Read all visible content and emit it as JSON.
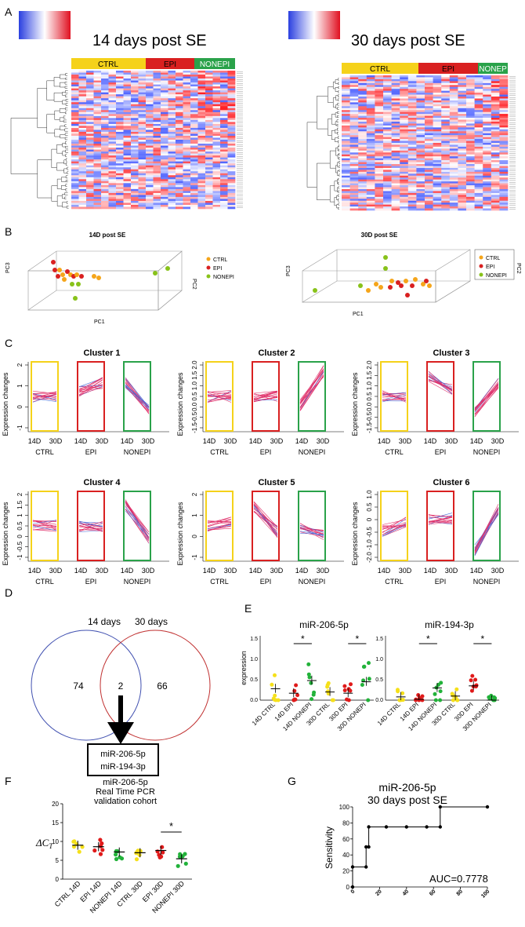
{
  "panel_letters": {
    "a": "A",
    "b": "B",
    "c": "C",
    "d": "D",
    "e": "E",
    "f": "F",
    "g": "G"
  },
  "colors": {
    "ctrl": "#f5d21a",
    "epi": "#d92020",
    "nonepi": "#2aa24a",
    "hm_low": "#2a3fe0",
    "hm_high": "#e01020",
    "lineblue": "#4a6ad8",
    "linered": "#e0306a"
  },
  "panel_a": {
    "left": {
      "title": "14 days post SE",
      "groups": [
        "CTRL",
        "EPI",
        "NONEPI"
      ]
    },
    "right": {
      "title": "30 days post SE",
      "groups": [
        "CTRL",
        "EPI",
        "NONEP"
      ]
    }
  },
  "panel_b": {
    "left": {
      "title": "14D post SE",
      "legend": [
        "CTRL",
        "EPI",
        "NONEPI"
      ],
      "axes": {
        "x": "PC1",
        "y": "PC3",
        "z": "PC2"
      }
    },
    "right": {
      "title": "30D post SE",
      "legend": [
        "CTRL",
        "EPI",
        "NONEPI"
      ],
      "axes": {
        "x": "PC1",
        "y": "PC3",
        "z": "PC2"
      }
    }
  },
  "panel_c": {
    "ylabel": "Expression changes",
    "tick_labels": [
      "14D",
      "30D"
    ],
    "groups": [
      "CTRL",
      "EPI",
      "NONEPI"
    ],
    "clusters": [
      {
        "title": "Cluster 1",
        "yticks": [
          "2",
          "1",
          "0",
          "-1"
        ]
      },
      {
        "title": "Cluster 2",
        "yticks": [
          "2.0",
          "1.5",
          "1.0",
          "0.5",
          "0.0",
          "-0.5",
          "-1.5"
        ]
      },
      {
        "title": "Cluster 3",
        "yticks": [
          "2.0",
          "1.5",
          "1.0",
          "0.5",
          "0.0",
          "-0.5",
          "-1.5"
        ]
      },
      {
        "title": "Cluster 4",
        "yticks": [
          "2",
          "1.5",
          "1",
          "0.5",
          "0",
          "-0.5",
          "-1"
        ]
      },
      {
        "title": "Cluster 5",
        "yticks": [
          "2",
          "1",
          "0",
          "-1"
        ]
      },
      {
        "title": "Cluster 6",
        "yticks": [
          "1.0",
          "0.5",
          "0",
          "-0.5",
          "-1.0",
          "-2.0"
        ]
      }
    ]
  },
  "panel_d": {
    "label_left": "14 days",
    "label_right": "30 days",
    "only_left": "74",
    "shared": "2",
    "only_right": "66",
    "box": [
      "miR-206-5p",
      "miR-194-3p"
    ]
  },
  "panel_e": {
    "ylabel": "expression",
    "categories": [
      "14D CTRL",
      "14D EPI",
      "14D NONEPI",
      "30D CTRL",
      "30D EPI",
      "30D NONEPI"
    ],
    "star": "*",
    "charts": [
      {
        "title": "miR-206-5p",
        "yticks": [
          "0.0",
          "0.5",
          "1.0",
          "1.5"
        ],
        "ylim": [
          0,
          1.5
        ],
        "means": [
          0.28,
          0.17,
          0.48,
          0.2,
          0.17,
          0.45
        ]
      },
      {
        "title": "miR-194-3p",
        "yticks": [
          "0.0",
          "0.5",
          "1.0",
          "1.5"
        ],
        "ylim": [
          0,
          1.5
        ],
        "means": [
          0.08,
          0.02,
          0.3,
          0.1,
          0.35,
          0.0
        ]
      }
    ]
  },
  "panel_f": {
    "title_lines": [
      "miR-206-5p",
      "Real Time PCR",
      "validation cohort"
    ],
    "ylabel": "ΔC",
    "ylabel_sub": "T",
    "yticks": [
      "0",
      "5",
      "10",
      "15",
      "20"
    ],
    "ylim": [
      0,
      20
    ],
    "categories": [
      "CTRL 14D",
      "EPI 14D",
      "NONEPI 14D",
      "CTRL 30D",
      "EPI 30D",
      "NONEPI 30D"
    ],
    "means": [
      9.0,
      8.6,
      7.2,
      7.0,
      7.6,
      5.4
    ],
    "star": "*"
  },
  "chart_data": {
    "type": "line",
    "title": "miR-206-5p 30 days post SE",
    "title_lines": [
      "miR-206-5p",
      "30 days post SE"
    ],
    "xlabel": "",
    "ylabel": "Sensitivity",
    "x": [
      0,
      0,
      10,
      10,
      12,
      12,
      25,
      40,
      55,
      65,
      65,
      100
    ],
    "y": [
      0,
      25,
      25,
      50,
      50,
      75,
      75,
      75,
      75,
      75,
      100,
      100
    ],
    "xlim": [
      0,
      100
    ],
    "ylim": [
      0,
      100
    ],
    "xticks": [
      "0",
      "20",
      "40",
      "60",
      "80",
      "100"
    ],
    "yticks": [
      "0",
      "20",
      "40",
      "60",
      "80",
      "100"
    ],
    "annotation": "AUC=0.7778"
  }
}
